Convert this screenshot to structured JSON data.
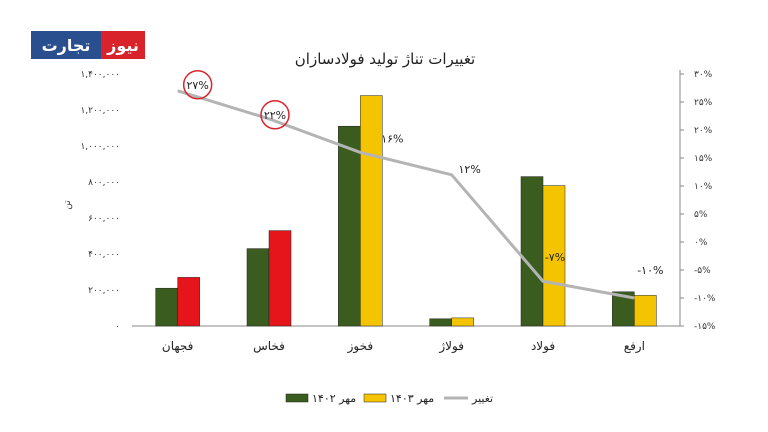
{
  "logo": {
    "part1": "تجارت",
    "part2": "نیوز"
  },
  "chart_data": {
    "type": "bar",
    "title": "تغییرات تناژ تولید فولادسازان",
    "ylabel": "تن",
    "categories": [
      "فجهان",
      "فخاس",
      "فخوز",
      "فولاژ",
      "فولاد",
      "ارفع"
    ],
    "series": [
      {
        "name": "مهر ۱۴۰۲",
        "color": "#3a5c1f",
        "values": [
          210000,
          430000,
          1110000,
          40000,
          830000,
          190000
        ]
      },
      {
        "name": "مهر ۱۴۰۳",
        "color": "#f5c400",
        "values": [
          270000,
          530000,
          1280000,
          45000,
          780000,
          170000
        ]
      }
    ],
    "highlight_colors": [
      "#e6141b",
      "#e6141b",
      null,
      null,
      null,
      null
    ],
    "line": {
      "name": "تغییر",
      "color": "#b4b4b4",
      "values": [
        27,
        22,
        16,
        12,
        -7,
        -10
      ],
      "labels": [
        "۲۷%",
        "۲۲%",
        "۱۶%",
        "۱۲%",
        "-۷%",
        "-۱۰%"
      ],
      "circled": [
        true,
        true,
        false,
        false,
        false,
        false
      ]
    },
    "y_left": {
      "min": 0,
      "max": 1400000,
      "ticks": [
        "۰",
        "۲۰۰,۰۰۰",
        "۴۰۰,۰۰۰",
        "۶۰۰,۰۰۰",
        "۸۰۰,۰۰۰",
        "۱,۰۰۰,۰۰۰",
        "۱,۲۰۰,۰۰۰",
        "۱,۴۰۰,۰۰۰"
      ]
    },
    "y_right": {
      "min": -15,
      "max": 30,
      "ticks": [
        "-۱۵%",
        "-۱۰%",
        "-۵%",
        "۰%",
        "۵%",
        "۱۰%",
        "۱۵%",
        "۲۰%",
        "۲۵%",
        "۳۰%"
      ]
    },
    "legend": [
      "مهر ۱۴۰۲",
      "مهر ۱۴۰۳",
      "تغییر"
    ],
    "grid": false,
    "legend_position": "bottom"
  }
}
